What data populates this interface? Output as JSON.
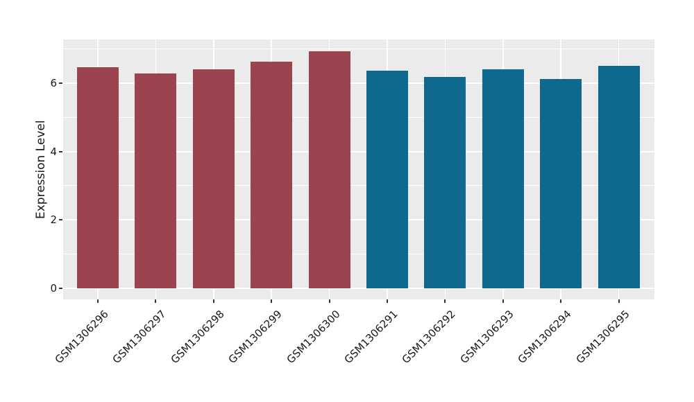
{
  "chart_data": {
    "type": "bar",
    "title": "",
    "xlabel": "",
    "ylabel": "Expression Level",
    "categories": [
      "GSM1306296",
      "GSM1306297",
      "GSM1306298",
      "GSM1306299",
      "GSM1306300",
      "GSM1306291",
      "GSM1306292",
      "GSM1306293",
      "GSM1306294",
      "GSM1306295"
    ],
    "values": [
      6.46,
      6.28,
      6.41,
      6.63,
      6.93,
      6.36,
      6.18,
      6.41,
      6.13,
      6.51
    ],
    "bar_colors": [
      "#9C4350",
      "#9C4350",
      "#9C4350",
      "#9C4350",
      "#9C4350",
      "#0E698C",
      "#0E698C",
      "#0E698C",
      "#0E698C",
      "#0E698C"
    ],
    "groups": [
      {
        "name": "group-red",
        "color": "#9C4350",
        "samples": [
          "GSM1306296",
          "GSM1306297",
          "GSM1306298",
          "GSM1306299",
          "GSM1306300"
        ]
      },
      {
        "name": "group-blue",
        "color": "#0E698C",
        "samples": [
          "GSM1306291",
          "GSM1306292",
          "GSM1306293",
          "GSM1306294",
          "GSM1306295"
        ]
      }
    ],
    "yticks": [
      0,
      2,
      4,
      6
    ],
    "yticks_minor": [
      1,
      3,
      5,
      7
    ],
    "ylim": [
      -0.33,
      7.28
    ],
    "grid": "on",
    "legend": "none",
    "panel_bg": "#EBEBEB",
    "grid_color": "#FFFFFF",
    "tick_color": "#333333",
    "text_color": "#1A1A1A",
    "x_label_rotation_deg": 45
  }
}
